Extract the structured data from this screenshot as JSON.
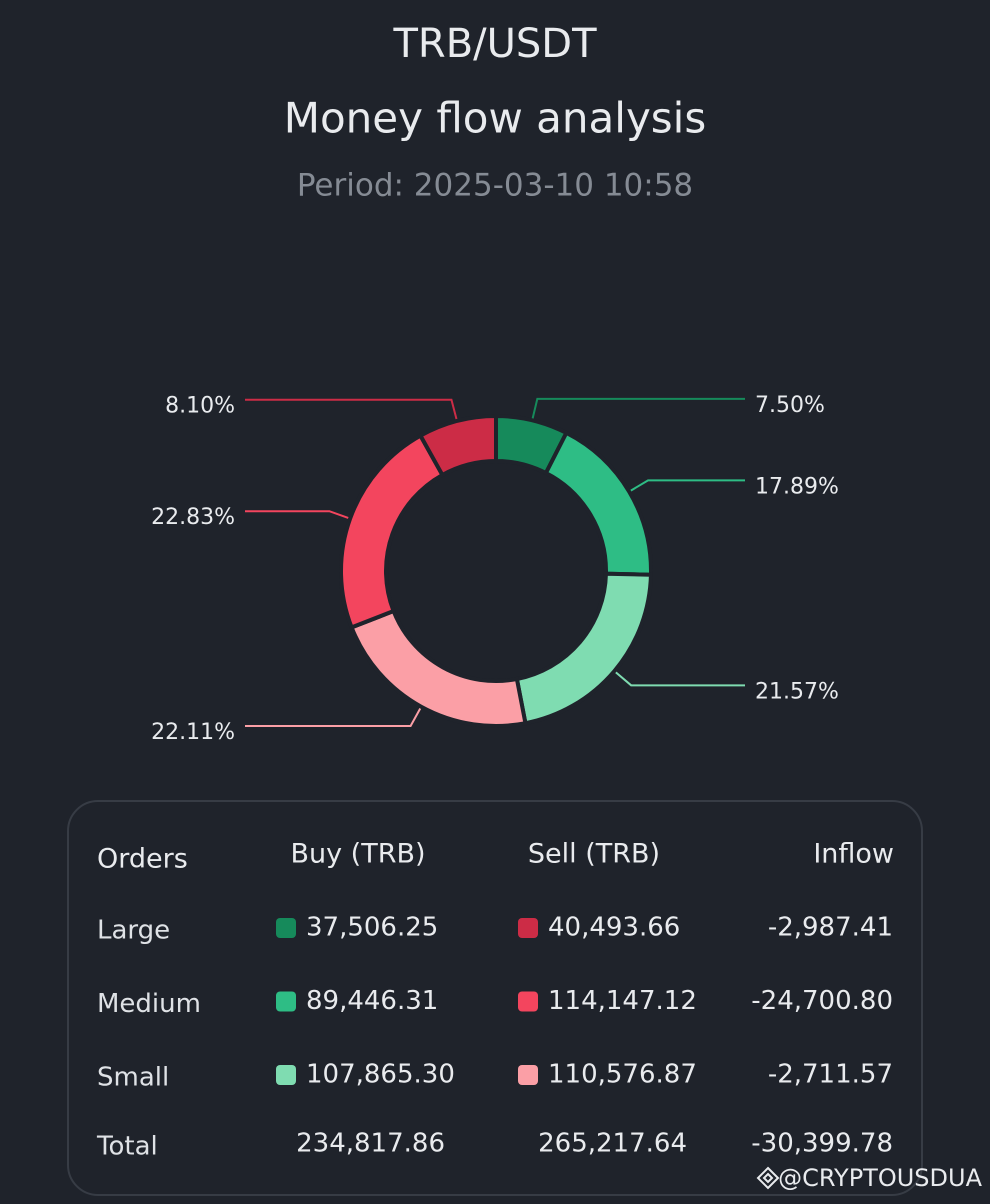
{
  "header": {
    "title": "TRB/USDT",
    "subtitle": "Money flow analysis",
    "period": "Period: 2025-03-10 10:58"
  },
  "chart_data": {
    "type": "donut",
    "values": [
      7.5,
      17.89,
      21.57,
      22.11,
      22.83,
      8.1
    ],
    "value_labels": [
      "7.50%",
      "17.89%",
      "21.57%",
      "22.11%",
      "22.83%",
      "8.10%"
    ],
    "colors": [
      "#168a5b",
      "#2ebd85",
      "#7fdcb1",
      "#fb9fa6",
      "#f3455e",
      "#cc2c46"
    ]
  },
  "table": {
    "columns": [
      "Orders",
      "Buy (TRB)",
      "Sell (TRB)",
      "Inflow"
    ],
    "rows": [
      {
        "order": "Large",
        "buy": "37,506.25",
        "sell": "40,493.66",
        "inflow": "-2,987.41"
      },
      {
        "order": "Medium",
        "buy": "89,446.31",
        "sell": "114,147.12",
        "inflow": "-24,700.80"
      },
      {
        "order": "Small",
        "buy": "107,865.30",
        "sell": "110,576.87",
        "inflow": "-2,711.57"
      }
    ],
    "total": {
      "order": "Total",
      "buy": "234,817.86",
      "sell": "265,217.64",
      "inflow": "-30,399.78"
    }
  },
  "watermark": "@CRYPTOUSDUA"
}
